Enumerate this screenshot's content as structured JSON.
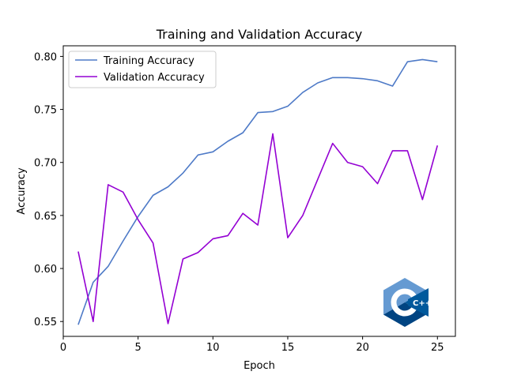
{
  "chart_data": {
    "type": "line",
    "title": "Training and Validation Accuracy",
    "xlabel": "Epoch",
    "ylabel": "Accuracy",
    "xlim": [
      0,
      26.2
    ],
    "ylim": [
      0.536,
      0.81
    ],
    "x": [
      1,
      2,
      3,
      4,
      5,
      6,
      7,
      8,
      9,
      10,
      11,
      12,
      13,
      14,
      15,
      16,
      17,
      18,
      19,
      20,
      21,
      22,
      23,
      24,
      25
    ],
    "xticks": [
      0,
      5,
      10,
      15,
      20,
      25
    ],
    "yticks": [
      0.55,
      0.6,
      0.65,
      0.7,
      0.75,
      0.8
    ],
    "xtick_labels": [
      "0",
      "5",
      "10",
      "15",
      "20",
      "25"
    ],
    "ytick_labels": [
      "0.55",
      "0.60",
      "0.65",
      "0.70",
      "0.75",
      "0.80"
    ],
    "legend_position": "top-left",
    "series": [
      {
        "name": "Training Accuracy",
        "color": "#4e7ac7",
        "values": [
          0.547,
          0.587,
          0.602,
          0.626,
          0.649,
          0.669,
          0.677,
          0.69,
          0.707,
          0.71,
          0.72,
          0.728,
          0.747,
          0.748,
          0.753,
          0.766,
          0.775,
          0.78,
          0.78,
          0.779,
          0.777,
          0.772,
          0.795,
          0.797,
          0.795
        ]
      },
      {
        "name": "Validation Accuracy",
        "color": "#9400d3",
        "values": [
          0.616,
          0.55,
          0.679,
          0.672,
          0.646,
          0.624,
          0.548,
          0.609,
          0.615,
          0.628,
          0.631,
          0.652,
          0.641,
          0.727,
          0.629,
          0.65,
          0.684,
          0.718,
          0.7,
          0.696,
          0.68,
          0.711,
          0.711,
          0.665,
          0.716
        ]
      }
    ],
    "watermark": {
      "name": "cpp-logo-icon",
      "text": "C++",
      "colors": [
        "#659ad2",
        "#00599c",
        "#004482"
      ]
    }
  }
}
